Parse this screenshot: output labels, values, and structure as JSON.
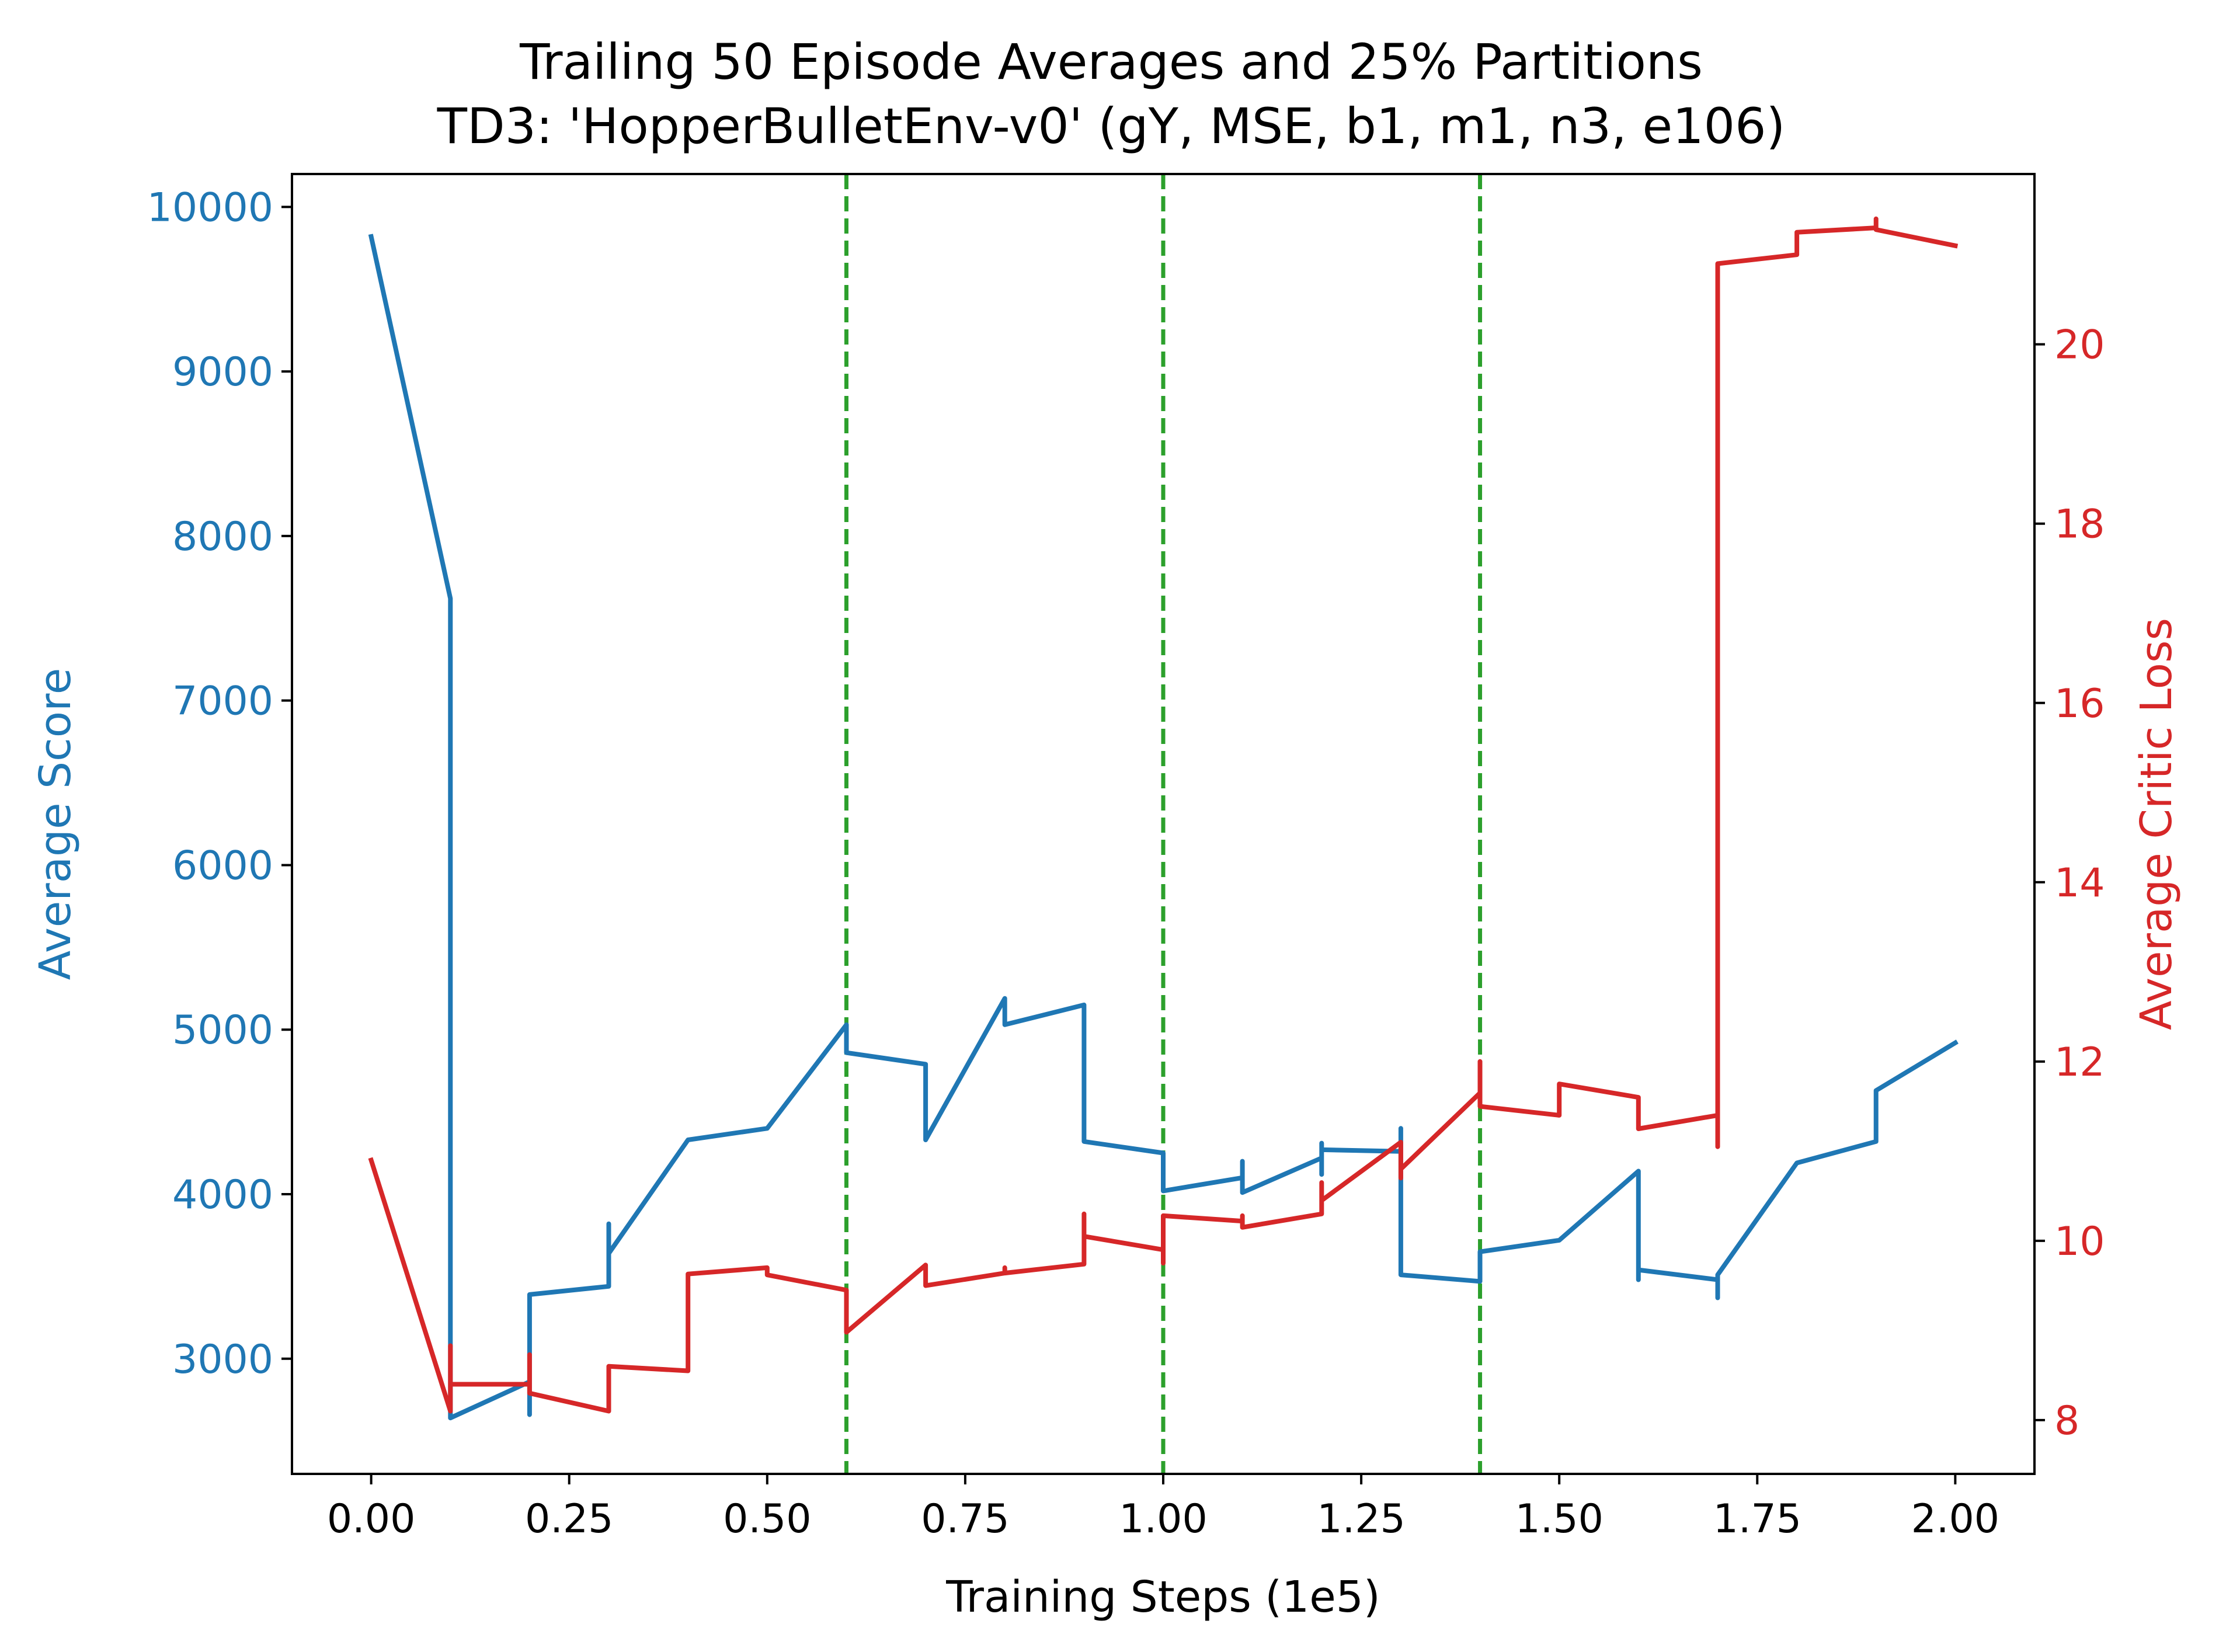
{
  "chart_data": {
    "type": "line",
    "title": "Trailing 50 Episode Averages and 25% Partitions",
    "subtitle": "TD3: 'HopperBulletEnv-v0' (gY, MSE, b1, m1, n3, e106)",
    "xlabel": "Training Steps (1e5)",
    "ylabel_left": "Average Score",
    "ylabel_right": "Average Critic Loss",
    "xlim": [
      -0.1,
      2.1
    ],
    "ylim_left": [
      2300,
      10200
    ],
    "ylim_right": [
      7.4,
      21.9
    ],
    "x_ticks": [
      "0.00",
      "0.25",
      "0.50",
      "0.75",
      "1.00",
      "1.25",
      "1.50",
      "1.75",
      "2.00"
    ],
    "y_left_ticks": [
      "3000",
      "4000",
      "5000",
      "6000",
      "7000",
      "8000",
      "9000",
      "10000"
    ],
    "y_right_ticks": [
      "8",
      "10",
      "12",
      "14",
      "16",
      "18",
      "20"
    ],
    "grid": false,
    "partitions": [
      0.6,
      1.0,
      1.4
    ],
    "colors": {
      "score": "#1f77b4",
      "loss": "#d62728",
      "partition": "#2ca02c"
    },
    "series": [
      {
        "axis": "left",
        "points": [
          [
            0.0,
            9820
          ],
          [
            0.1,
            7620
          ],
          [
            0.1,
            2640
          ],
          [
            0.2,
            2860
          ],
          [
            0.2,
            2660
          ],
          [
            0.2,
            3390
          ],
          [
            0.3,
            3440
          ],
          [
            0.3,
            3820
          ],
          [
            0.3,
            3640
          ],
          [
            0.4,
            4330
          ],
          [
            0.5,
            4400
          ],
          [
            0.6,
            5030
          ],
          [
            0.6,
            4860
          ],
          [
            0.7,
            4790
          ],
          [
            0.7,
            4330
          ],
          [
            0.8,
            5190
          ],
          [
            0.8,
            5030
          ],
          [
            0.9,
            5150
          ],
          [
            0.9,
            4320
          ],
          [
            1.0,
            4250
          ],
          [
            1.0,
            4100
          ],
          [
            1.0,
            4020
          ],
          [
            1.1,
            4100
          ],
          [
            1.1,
            4200
          ],
          [
            1.1,
            4010
          ],
          [
            1.2,
            4220
          ],
          [
            1.2,
            4120
          ],
          [
            1.2,
            4310
          ],
          [
            1.2,
            4270
          ],
          [
            1.3,
            4260
          ],
          [
            1.3,
            4400
          ],
          [
            1.3,
            3510
          ],
          [
            1.4,
            3470
          ],
          [
            1.4,
            3560
          ],
          [
            1.4,
            3650
          ],
          [
            1.5,
            3720
          ],
          [
            1.6,
            4140
          ],
          [
            1.6,
            3480
          ],
          [
            1.6,
            3540
          ],
          [
            1.7,
            3480
          ],
          [
            1.7,
            3370
          ],
          [
            1.7,
            3510
          ],
          [
            1.8,
            4190
          ],
          [
            1.9,
            4320
          ],
          [
            1.9,
            4630
          ],
          [
            2.0,
            4920
          ]
        ]
      },
      {
        "axis": "right",
        "points": [
          [
            0.0,
            10.9
          ],
          [
            0.1,
            8.1
          ],
          [
            0.1,
            8.83
          ],
          [
            0.1,
            8.4
          ],
          [
            0.2,
            8.4
          ],
          [
            0.2,
            8.73
          ],
          [
            0.2,
            8.3
          ],
          [
            0.3,
            8.1
          ],
          [
            0.3,
            8.6
          ],
          [
            0.4,
            8.55
          ],
          [
            0.4,
            9.63
          ],
          [
            0.5,
            9.7
          ],
          [
            0.5,
            9.62
          ],
          [
            0.6,
            9.45
          ],
          [
            0.6,
            8.98
          ],
          [
            0.7,
            9.73
          ],
          [
            0.7,
            9.5
          ],
          [
            0.8,
            9.64
          ],
          [
            0.8,
            9.7
          ],
          [
            0.8,
            9.64
          ],
          [
            0.9,
            9.74
          ],
          [
            0.9,
            10.3
          ],
          [
            0.9,
            10.05
          ],
          [
            1.0,
            9.9
          ],
          [
            1.0,
            9.75
          ],
          [
            1.0,
            10.28
          ],
          [
            1.1,
            10.22
          ],
          [
            1.1,
            10.28
          ],
          [
            1.1,
            10.15
          ],
          [
            1.2,
            10.3
          ],
          [
            1.2,
            10.65
          ],
          [
            1.2,
            10.45
          ],
          [
            1.3,
            11.1
          ],
          [
            1.3,
            10.7
          ],
          [
            1.3,
            10.8
          ],
          [
            1.4,
            11.65
          ],
          [
            1.4,
            12.0
          ],
          [
            1.4,
            11.5
          ],
          [
            1.5,
            11.4
          ],
          [
            1.5,
            11.75
          ],
          [
            1.6,
            11.6
          ],
          [
            1.6,
            11.25
          ],
          [
            1.7,
            11.4
          ],
          [
            1.7,
            11.05
          ],
          [
            1.7,
            20.9
          ],
          [
            1.8,
            21.0
          ],
          [
            1.8,
            21.25
          ],
          [
            1.9,
            21.3
          ],
          [
            1.9,
            21.4
          ],
          [
            1.9,
            21.28
          ],
          [
            2.0,
            21.1
          ]
        ]
      }
    ]
  }
}
